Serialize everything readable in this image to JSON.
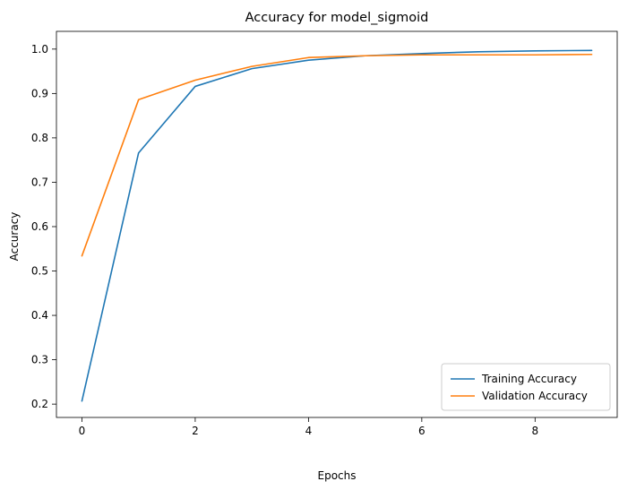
{
  "chart_data": {
    "type": "line",
    "title": "Accuracy for model_sigmoid",
    "xlabel": "Epochs",
    "ylabel": "Accuracy",
    "x": [
      0,
      1,
      2,
      3,
      4,
      5,
      6,
      7,
      8,
      9
    ],
    "xlim": [
      -0.45,
      9.45
    ],
    "ylim": [
      0.17,
      1.04
    ],
    "xticks": [
      0,
      2,
      4,
      6,
      8
    ],
    "yticks": [
      0.2,
      0.3,
      0.4,
      0.5,
      0.6,
      0.7,
      0.8,
      0.9,
      1.0
    ],
    "xtick_labels": [
      "0",
      "2",
      "4",
      "6",
      "8"
    ],
    "ytick_labels": [
      "0.2",
      "0.3",
      "0.4",
      "0.5",
      "0.6",
      "0.7",
      "0.8",
      "0.9",
      "1.0"
    ],
    "grid": false,
    "legend": "lower-right",
    "series": [
      {
        "name": "Training Accuracy",
        "color": "#1f77b4",
        "values": [
          0.207,
          0.766,
          0.916,
          0.956,
          0.975,
          0.985,
          0.99,
          0.994,
          0.996,
          0.997
        ]
      },
      {
        "name": "Validation Accuracy",
        "color": "#ff7f0e",
        "values": [
          0.534,
          0.886,
          0.93,
          0.961,
          0.981,
          0.985,
          0.987,
          0.987,
          0.987,
          0.988
        ]
      }
    ]
  }
}
